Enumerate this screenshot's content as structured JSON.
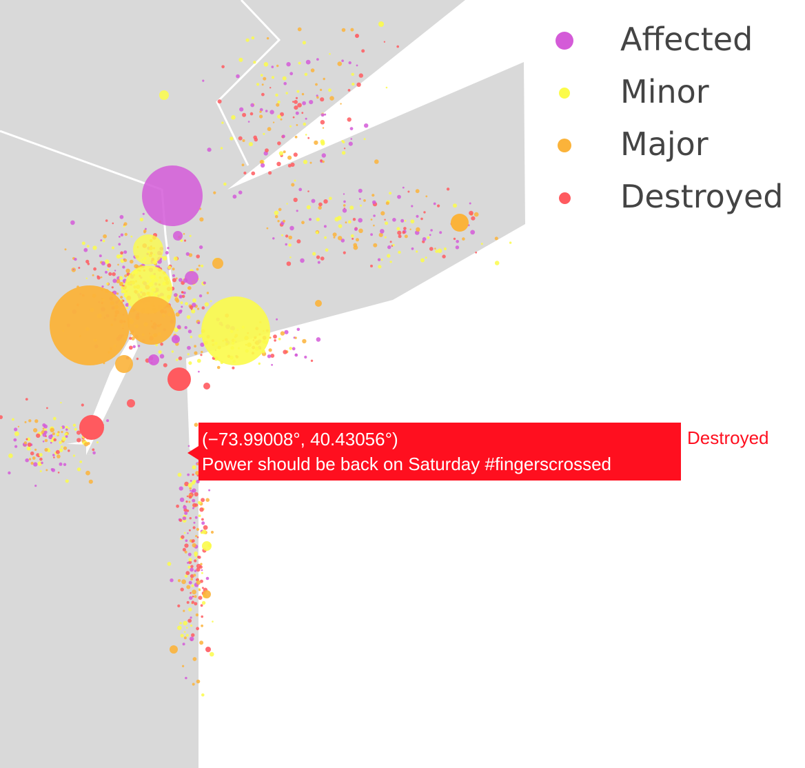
{
  "map": {
    "land_color": "#d9d9d9",
    "water_color": "#ffffff",
    "border_color": "#ffffff"
  },
  "legend": {
    "items": [
      {
        "key": "affected",
        "label": "Affected",
        "color": "#d45bd8"
      },
      {
        "key": "minor",
        "label": "Minor",
        "color": "#fbfb4a"
      },
      {
        "key": "major",
        "label": "Major",
        "color": "#fbb33a"
      },
      {
        "key": "destroyed",
        "label": "Destroyed",
        "color": "#ff5a5f"
      }
    ]
  },
  "tooltip": {
    "coordinates": "(−73.99008°, 40.43056°)",
    "message": "Power should be back on Saturday #fingerscrossed",
    "series": "Destroyed",
    "color": "#ff0f1f"
  }
}
